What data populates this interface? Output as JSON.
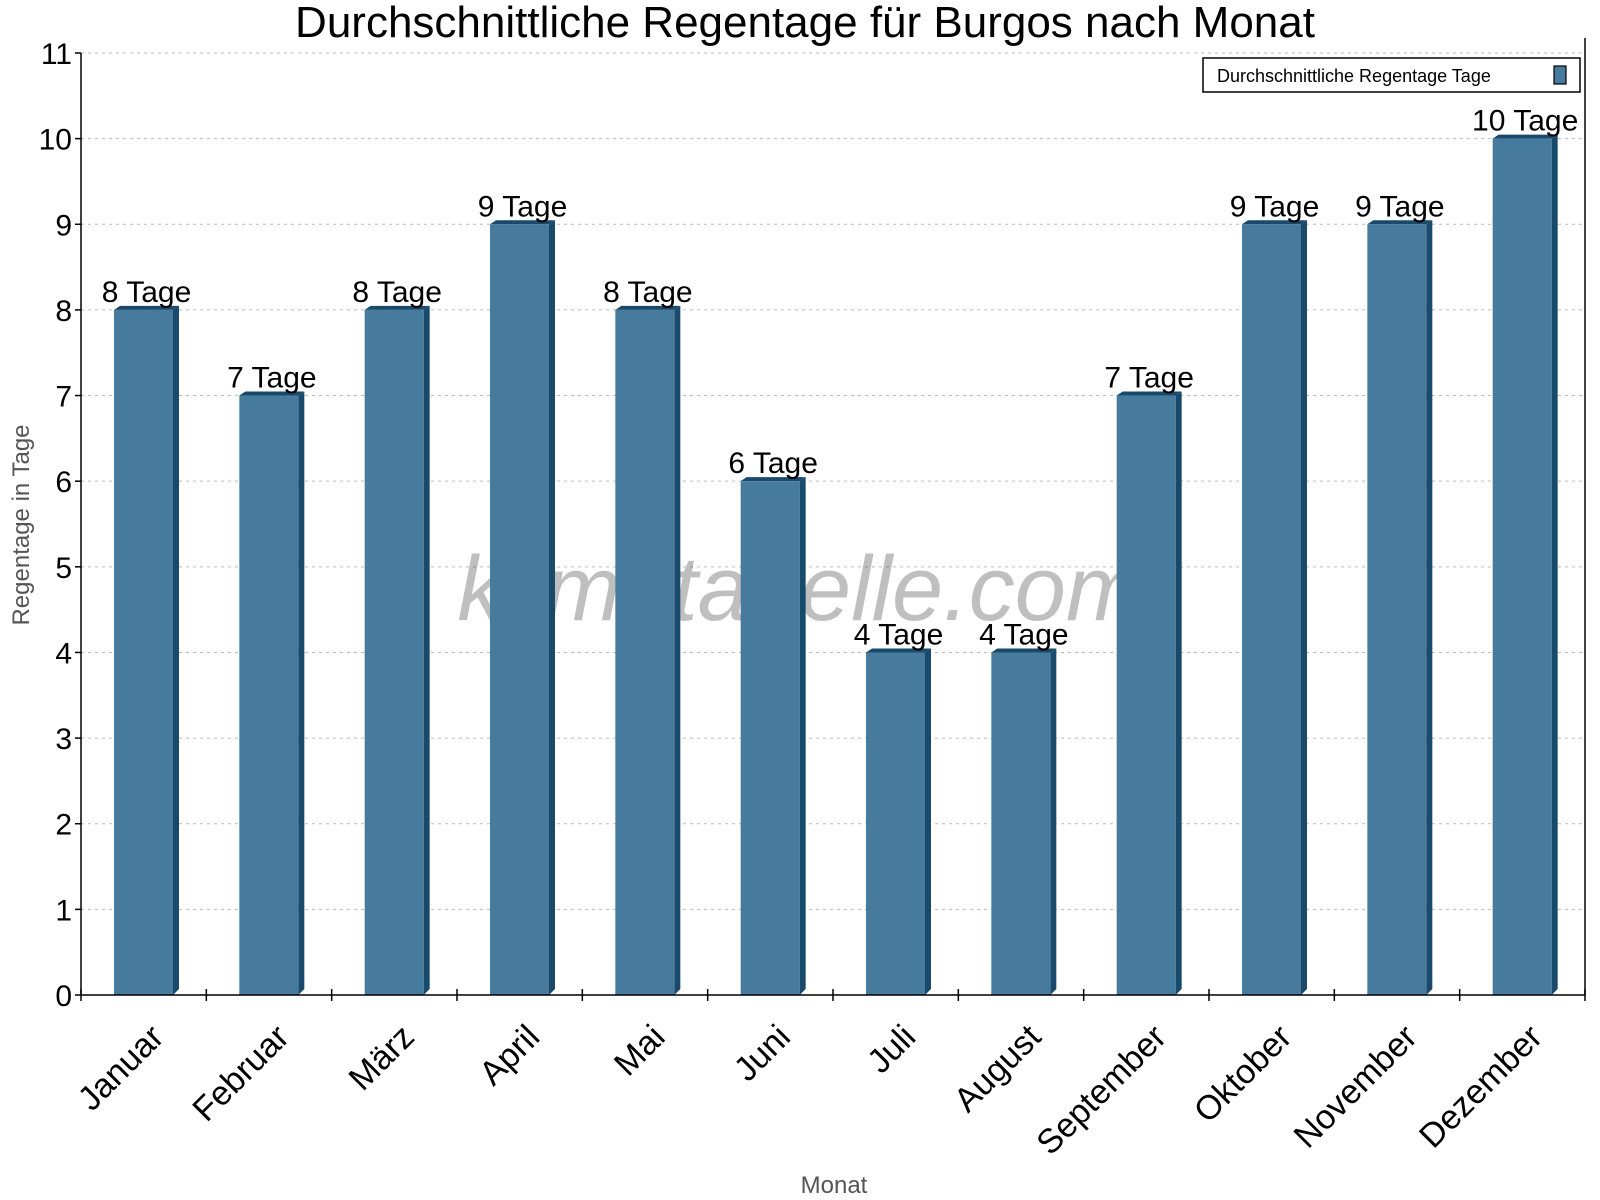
{
  "chart_data": {
    "type": "bar",
    "title": "Durchschnittliche Regentage für Burgos nach Monat",
    "xlabel": "Monat",
    "ylabel": "Regentage in Tage",
    "categories": [
      "Januar",
      "Februar",
      "März",
      "April",
      "Mai",
      "Juni",
      "Juli",
      "August",
      "September",
      "Oktober",
      "November",
      "Dezember"
    ],
    "series": [
      {
        "name": "Durchschnittliche Regentage Tage",
        "values": [
          8,
          7,
          8,
          9,
          8,
          6,
          4,
          4,
          7,
          9,
          9,
          10
        ],
        "color": "#467b9d",
        "side_color": "#1a4a6b"
      }
    ],
    "data_labels": [
      "8 Tage",
      "7 Tage",
      "8 Tage",
      "9 Tage",
      "8 Tage",
      "6 Tage",
      "4 Tage",
      "4 Tage",
      "7 Tage",
      "9 Tage",
      "9 Tage",
      "10 Tage"
    ],
    "ylim": [
      0,
      11
    ],
    "yticks": [
      0,
      1,
      2,
      3,
      4,
      5,
      6,
      7,
      8,
      9,
      10,
      11
    ],
    "grid": true,
    "legend_position": "top-right",
    "watermark": "klimatabelle.com"
  }
}
